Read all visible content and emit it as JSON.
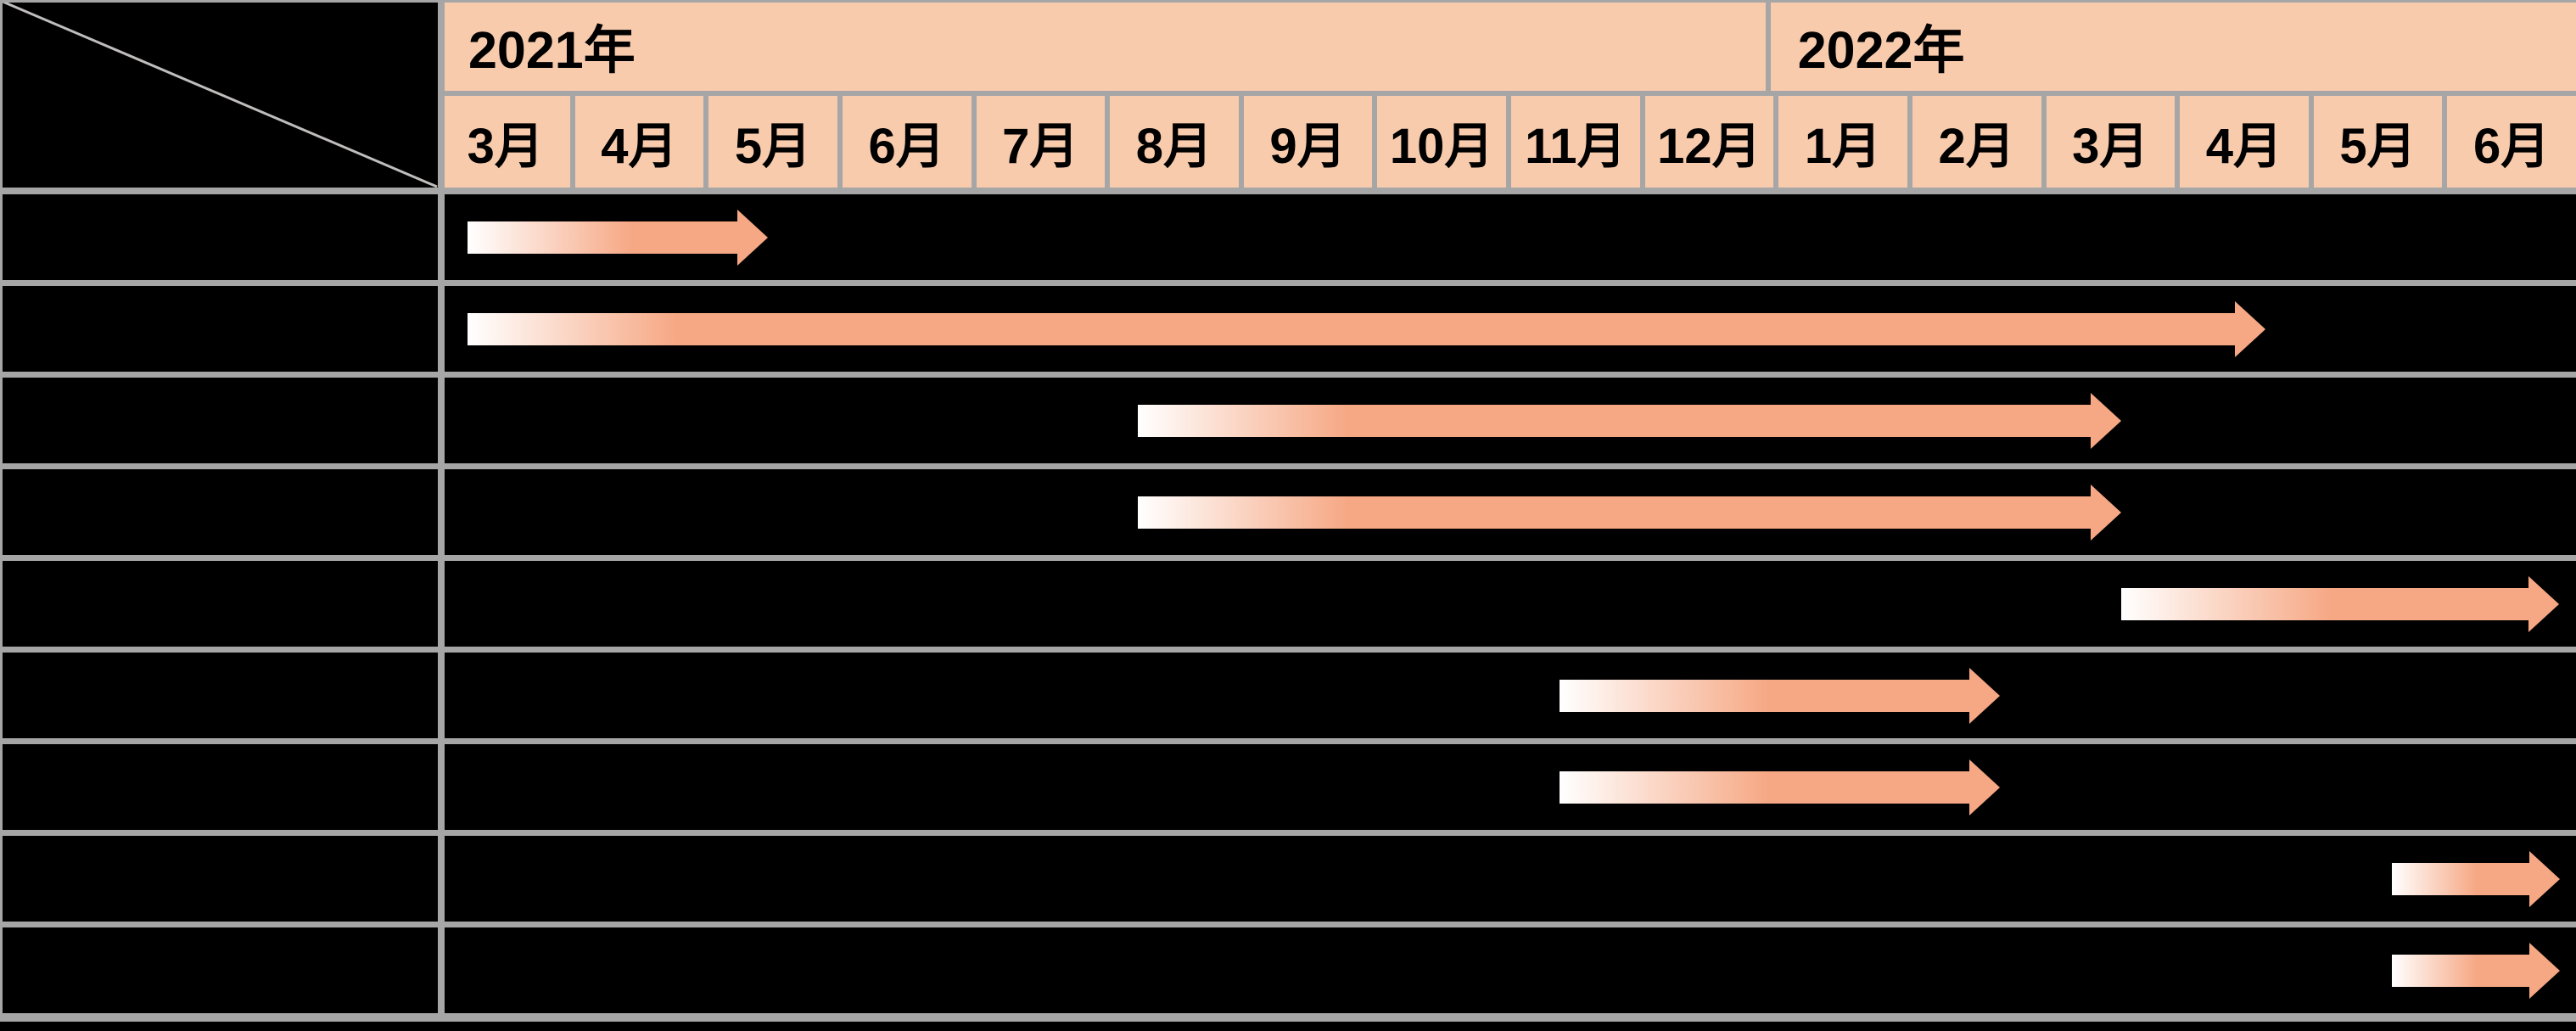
{
  "colors": {
    "header_fill": "#F8CBAD",
    "grid_line": "#A6A6A6",
    "row_fill": "#000000",
    "text": "#000000",
    "arrow_gradient_start": "#FFFFFF",
    "arrow_gradient_end": "#F6A783",
    "arrow_head": "#F6A783",
    "diagonal_line": "#C0BEBD"
  },
  "header": {
    "years": [
      {
        "label": "2021年",
        "month_span": 10
      },
      {
        "label": "2022年",
        "month_span": 6
      }
    ],
    "months": [
      "3月",
      "4月",
      "5月",
      "6月",
      "7月",
      "8月",
      "9月",
      "10月",
      "11月",
      "12月",
      "1月",
      "2月",
      "3月",
      "4月",
      "5月",
      "6月"
    ]
  },
  "chart_data": {
    "type": "gantt",
    "title": "",
    "timeline": {
      "start": "2021-03",
      "end": "2022-06",
      "columns": 16,
      "unit": "month"
    },
    "legend": "none",
    "bar_style": "white-to-salmon gradient arrow",
    "tasks": [
      {
        "label": "",
        "start": "2021-03",
        "end": "2021-05",
        "start_col": 0.2,
        "end_col": 2.45
      },
      {
        "label": "",
        "start": "2021-03",
        "end": "2022-04",
        "start_col": 0.2,
        "end_col": 13.67
      },
      {
        "label": "",
        "start": "2021-08",
        "end": "2022-03",
        "start_col": 5.22,
        "end_col": 12.59
      },
      {
        "label": "",
        "start": "2021-08",
        "end": "2022-03",
        "start_col": 5.22,
        "end_col": 12.59
      },
      {
        "label": "",
        "start": "2022-03",
        "end": "2022-06",
        "start_col": 12.59,
        "end_col": 15.87
      },
      {
        "label": "",
        "start": "2021-11",
        "end": "2022-02",
        "start_col": 8.38,
        "end_col": 11.68
      },
      {
        "label": "",
        "start": "2021-11",
        "end": "2022-02",
        "start_col": 8.38,
        "end_col": 11.68
      },
      {
        "label": "",
        "start": "2022-05",
        "end": "2022-06",
        "start_col": 14.62,
        "end_col": 15.88
      },
      {
        "label": "",
        "start": "2022-05",
        "end": "2022-06",
        "start_col": 14.62,
        "end_col": 15.88
      }
    ]
  }
}
